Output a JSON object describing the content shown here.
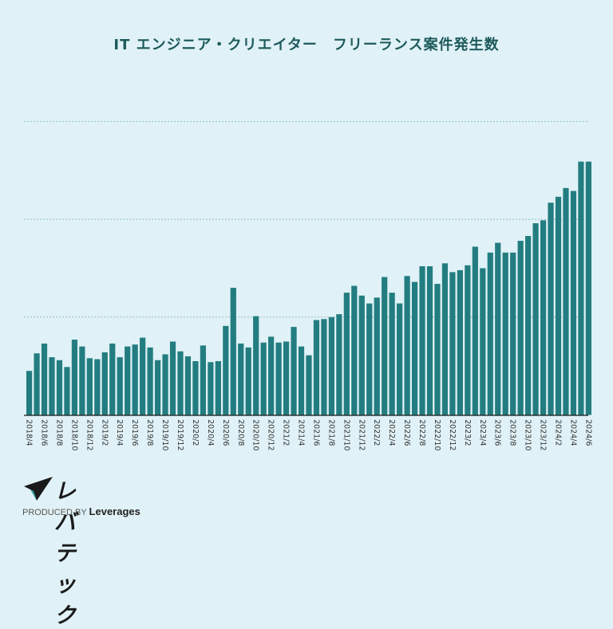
{
  "chart_data": {
    "type": "bar",
    "title": "IT エンジニア・クリエイター　フリーランス案件発生数",
    "xlabel": "",
    "ylabel": "",
    "y_axis_labels_shown": false,
    "ylim": [
      0,
      3.2
    ],
    "gridlines": [
      1,
      2,
      3
    ],
    "grid": "horizontal dotted",
    "bar_color": "#237d80",
    "categories": [
      "2018/4",
      "2018/5",
      "2018/6",
      "2018/7",
      "2018/8",
      "2018/9",
      "2018/10",
      "2018/11",
      "2018/12",
      "2019/1",
      "2019/2",
      "2019/3",
      "2019/4",
      "2019/5",
      "2019/6",
      "2019/7",
      "2019/8",
      "2019/9",
      "2019/10",
      "2019/11",
      "2019/12",
      "2020/1",
      "2020/2",
      "2020/3",
      "2020/4",
      "2020/5",
      "2020/6",
      "2020/7",
      "2020/8",
      "2020/9",
      "2020/10",
      "2020/11",
      "2020/12",
      "2021/1",
      "2021/2",
      "2021/3",
      "2021/4",
      "2021/5",
      "2021/6",
      "2021/7",
      "2021/8",
      "2021/9",
      "2021/10",
      "2021/11",
      "2021/12",
      "2022/1",
      "2022/2",
      "2022/3",
      "2022/4",
      "2022/5",
      "2022/6",
      "2022/7",
      "2022/8",
      "2022/9",
      "2022/10",
      "2022/11",
      "2022/12",
      "2023/1",
      "2023/2",
      "2023/3",
      "2023/4",
      "2023/5",
      "2023/6",
      "2023/7",
      "2023/8",
      "2023/9",
      "2023/10",
      "2023/11",
      "2023/12",
      "2024/1",
      "2024/2",
      "2024/3",
      "2024/4",
      "2024/5",
      "2024/6"
    ],
    "tick_labels": [
      "2018/4",
      "2018/6",
      "2018/8",
      "2018/10",
      "2018/12",
      "2019/2",
      "2019/4",
      "2019/6",
      "2019/8",
      "2019/10",
      "2019/12",
      "2020/2",
      "2020/4",
      "2020/6",
      "2020/8",
      "2020/10",
      "2020/12",
      "2021/2",
      "2021/4",
      "2021/6",
      "2021/8",
      "2021/10",
      "2021/12",
      "2022/2",
      "2022/4",
      "2022/6",
      "2022/8",
      "2022/10",
      "2022/12",
      "2023/2",
      "2023/4",
      "2023/6",
      "2023/8",
      "2023/10",
      "2023/12",
      "2024/2",
      "2024/4",
      "2024/6"
    ],
    "values": [
      0.45,
      0.63,
      0.73,
      0.59,
      0.56,
      0.49,
      0.77,
      0.7,
      0.58,
      0.57,
      0.64,
      0.73,
      0.59,
      0.7,
      0.72,
      0.79,
      0.69,
      0.56,
      0.62,
      0.75,
      0.65,
      0.6,
      0.55,
      0.71,
      0.54,
      0.55,
      0.91,
      1.3,
      0.73,
      0.69,
      1.01,
      0.74,
      0.8,
      0.74,
      0.75,
      0.9,
      0.7,
      0.61,
      0.97,
      0.98,
      1.0,
      1.03,
      1.25,
      1.32,
      1.22,
      1.14,
      1.2,
      1.41,
      1.25,
      1.14,
      1.42,
      1.36,
      1.52,
      1.52,
      1.34,
      1.55,
      1.46,
      1.48,
      1.53,
      1.72,
      1.5,
      1.66,
      1.76,
      1.66,
      1.66,
      1.78,
      1.83,
      1.96,
      1.99,
      2.17,
      2.23,
      2.32,
      2.29,
      2.59,
      2.59
    ]
  },
  "logo": {
    "name": "レバテック",
    "produced_by": "PRODUCED BY",
    "company": "Leverages"
  }
}
